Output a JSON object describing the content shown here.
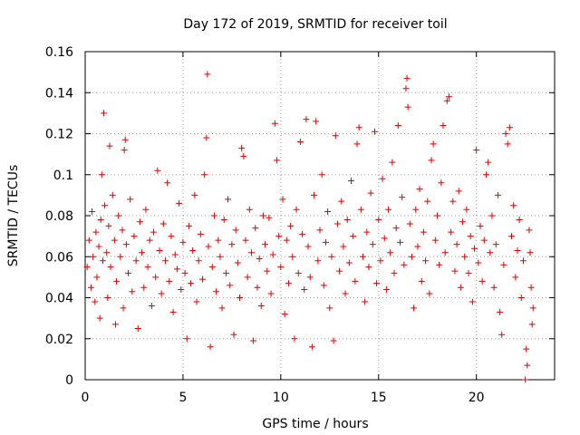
{
  "chart_data": {
    "type": "scatter",
    "title": "Day 172 of 2019, SRMTID for receiver toil",
    "xlabel": "GPS time / hours",
    "ylabel": "SRMTID / TECUs",
    "xlim": [
      0,
      24
    ],
    "ylim": [
      0,
      0.16
    ],
    "xticks": [
      0,
      5,
      10,
      15,
      20
    ],
    "xtick_labels": [
      "0",
      "5",
      "10",
      "15",
      "20"
    ],
    "yticks": [
      0,
      0.02,
      0.04,
      0.06,
      0.08,
      0.1,
      0.12,
      0.14,
      0.16
    ],
    "ytick_labels": [
      "0",
      "0.02",
      "0.04",
      "0.06",
      "0.08",
      "0.1",
      "0.12",
      "0.14",
      "0.16"
    ],
    "grid": true,
    "legend": "none",
    "marker": "plus",
    "color": "#e00000",
    "series": [
      {
        "points": [
          [
            0.1,
            0.055
          ],
          [
            0.2,
            0.068
          ],
          [
            0.3,
            0.045
          ],
          [
            0.35,
            0.082
          ],
          [
            0.4,
            0.06
          ],
          [
            0.5,
            0.038
          ],
          [
            0.55,
            0.072
          ],
          [
            0.6,
            0.05
          ],
          [
            0.7,
            0.065
          ],
          [
            0.75,
            0.03
          ],
          [
            0.8,
            0.078
          ],
          [
            0.85,
            0.1
          ],
          [
            0.9,
            0.058
          ],
          [
            0.95,
            0.13
          ],
          [
            1.0,
            0.085
          ],
          [
            1.1,
            0.062
          ],
          [
            1.15,
            0.04
          ],
          [
            1.2,
            0.075
          ],
          [
            1.25,
            0.114
          ],
          [
            1.3,
            0.055
          ],
          [
            1.4,
            0.09
          ],
          [
            1.5,
            0.068
          ],
          [
            1.55,
            0.027
          ],
          [
            1.6,
            0.048
          ],
          [
            1.7,
            0.08
          ],
          [
            1.8,
            0.06
          ],
          [
            1.9,
            0.073
          ],
          [
            1.95,
            0.035
          ],
          [
            2.0,
            0.112
          ],
          [
            2.05,
            0.117
          ],
          [
            2.1,
            0.066
          ],
          [
            2.2,
            0.052
          ],
          [
            2.3,
            0.088
          ],
          [
            2.4,
            0.043
          ],
          [
            2.5,
            0.07
          ],
          [
            2.6,
            0.058
          ],
          [
            2.7,
            0.025
          ],
          [
            2.8,
            0.077
          ],
          [
            2.9,
            0.062
          ],
          [
            3.0,
            0.045
          ],
          [
            3.1,
            0.083
          ],
          [
            3.2,
            0.055
          ],
          [
            3.3,
            0.068
          ],
          [
            3.4,
            0.036
          ],
          [
            3.5,
            0.072
          ],
          [
            3.6,
            0.05
          ],
          [
            3.7,
            0.102
          ],
          [
            3.8,
            0.063
          ],
          [
            3.9,
            0.042
          ],
          [
            4.0,
            0.076
          ],
          [
            4.1,
            0.058
          ],
          [
            4.2,
            0.096
          ],
          [
            4.3,
            0.048
          ],
          [
            4.4,
            0.07
          ],
          [
            4.5,
            0.033
          ],
          [
            4.6,
            0.061
          ],
          [
            4.7,
            0.054
          ],
          [
            4.8,
            0.086
          ],
          [
            4.9,
            0.044
          ],
          [
            5.0,
            0.067
          ],
          [
            5.1,
            0.052
          ],
          [
            5.2,
            0.02
          ],
          [
            5.3,
            0.075
          ],
          [
            5.4,
            0.047
          ],
          [
            5.5,
            0.063
          ],
          [
            5.6,
            0.09
          ],
          [
            5.7,
            0.038
          ],
          [
            5.8,
            0.058
          ],
          [
            5.9,
            0.071
          ],
          [
            6.0,
            0.049
          ],
          [
            6.1,
            0.1
          ],
          [
            6.2,
            0.118
          ],
          [
            6.25,
            0.149
          ],
          [
            6.3,
            0.065
          ],
          [
            6.4,
            0.016
          ],
          [
            6.5,
            0.055
          ],
          [
            6.6,
            0.08
          ],
          [
            6.7,
            0.043
          ],
          [
            6.8,
            0.068
          ],
          [
            6.9,
            0.06
          ],
          [
            7.0,
            0.035
          ],
          [
            7.1,
            0.078
          ],
          [
            7.2,
            0.052
          ],
          [
            7.3,
            0.088
          ],
          [
            7.4,
            0.046
          ],
          [
            7.5,
            0.066
          ],
          [
            7.6,
            0.022
          ],
          [
            7.7,
            0.073
          ],
          [
            7.8,
            0.057
          ],
          [
            7.9,
            0.04
          ],
          [
            8.0,
            0.113
          ],
          [
            8.1,
            0.109
          ],
          [
            8.2,
            0.068
          ],
          [
            8.3,
            0.05
          ],
          [
            8.4,
            0.083
          ],
          [
            8.5,
            0.062
          ],
          [
            8.6,
            0.019
          ],
          [
            8.7,
            0.074
          ],
          [
            8.8,
            0.045
          ],
          [
            8.9,
            0.059
          ],
          [
            9.0,
            0.036
          ],
          [
            9.1,
            0.08
          ],
          [
            9.2,
            0.066
          ],
          [
            9.3,
            0.053
          ],
          [
            9.4,
            0.079
          ],
          [
            9.5,
            0.042
          ],
          [
            9.6,
            0.061
          ],
          [
            9.7,
            0.125
          ],
          [
            9.8,
            0.107
          ],
          [
            9.9,
            0.07
          ],
          [
            10.0,
            0.055
          ],
          [
            10.1,
            0.088
          ],
          [
            10.2,
            0.032
          ],
          [
            10.3,
            0.068
          ],
          [
            10.4,
            0.047
          ],
          [
            10.5,
            0.075
          ],
          [
            10.6,
            0.06
          ],
          [
            10.7,
            0.02
          ],
          [
            10.8,
            0.083
          ],
          [
            10.9,
            0.052
          ],
          [
            11.0,
            0.116
          ],
          [
            11.1,
            0.071
          ],
          [
            11.2,
            0.044
          ],
          [
            11.3,
            0.127
          ],
          [
            11.4,
            0.065
          ],
          [
            11.5,
            0.05
          ],
          [
            11.6,
            0.016
          ],
          [
            11.7,
            0.09
          ],
          [
            11.8,
            0.126
          ],
          [
            11.9,
            0.058
          ],
          [
            12.0,
            0.073
          ],
          [
            12.1,
            0.1
          ],
          [
            12.2,
            0.046
          ],
          [
            12.3,
            0.067
          ],
          [
            12.4,
            0.082
          ],
          [
            12.5,
            0.035
          ],
          [
            12.6,
            0.06
          ],
          [
            12.7,
            0.019
          ],
          [
            12.8,
            0.119
          ],
          [
            12.9,
            0.076
          ],
          [
            13.0,
            0.053
          ],
          [
            13.1,
            0.087
          ],
          [
            13.2,
            0.065
          ],
          [
            13.3,
            0.042
          ],
          [
            13.4,
            0.078
          ],
          [
            13.5,
            0.057
          ],
          [
            13.6,
            0.097
          ],
          [
            13.7,
            0.07
          ],
          [
            13.8,
            0.048
          ],
          [
            13.9,
            0.115
          ],
          [
            14.0,
            0.123
          ],
          [
            14.1,
            0.083
          ],
          [
            14.2,
            0.06
          ],
          [
            14.3,
            0.038
          ],
          [
            14.4,
            0.072
          ],
          [
            14.5,
            0.055
          ],
          [
            14.6,
            0.091
          ],
          [
            14.7,
            0.066
          ],
          [
            14.8,
            0.121
          ],
          [
            14.9,
            0.047
          ],
          [
            15.0,
            0.078
          ],
          [
            15.1,
            0.058
          ],
          [
            15.2,
            0.098
          ],
          [
            15.3,
            0.069
          ],
          [
            15.4,
            0.044
          ],
          [
            15.5,
            0.083
          ],
          [
            15.6,
            0.062
          ],
          [
            15.7,
            0.106
          ],
          [
            15.8,
            0.052
          ],
          [
            15.9,
            0.074
          ],
          [
            16.0,
            0.124
          ],
          [
            16.1,
            0.067
          ],
          [
            16.2,
            0.089
          ],
          [
            16.3,
            0.056
          ],
          [
            16.4,
            0.142
          ],
          [
            16.45,
            0.147
          ],
          [
            16.5,
            0.133
          ],
          [
            16.6,
            0.076
          ],
          [
            16.7,
            0.06
          ],
          [
            16.8,
            0.035
          ],
          [
            16.9,
            0.083
          ],
          [
            17.0,
            0.065
          ],
          [
            17.1,
            0.093
          ],
          [
            17.2,
            0.048
          ],
          [
            17.3,
            0.072
          ],
          [
            17.4,
            0.058
          ],
          [
            17.5,
            0.087
          ],
          [
            17.6,
            0.042
          ],
          [
            17.7,
            0.107
          ],
          [
            17.8,
            0.115
          ],
          [
            17.9,
            0.068
          ],
          [
            18.0,
            0.08
          ],
          [
            18.1,
            0.056
          ],
          [
            18.2,
            0.096
          ],
          [
            18.3,
            0.124
          ],
          [
            18.4,
            0.062
          ],
          [
            18.5,
            0.136
          ],
          [
            18.6,
            0.138
          ],
          [
            18.7,
            0.072
          ],
          [
            18.8,
            0.087
          ],
          [
            18.9,
            0.053
          ],
          [
            19.0,
            0.066
          ],
          [
            19.1,
            0.092
          ],
          [
            19.2,
            0.045
          ],
          [
            19.3,
            0.077
          ],
          [
            19.4,
            0.06
          ],
          [
            19.5,
            0.083
          ],
          [
            19.6,
            0.052
          ],
          [
            19.7,
            0.07
          ],
          [
            19.8,
            0.038
          ],
          [
            19.9,
            0.064
          ],
          [
            20.0,
            0.112
          ],
          [
            20.1,
            0.057
          ],
          [
            20.2,
            0.075
          ],
          [
            20.3,
            0.048
          ],
          [
            20.4,
            0.068
          ],
          [
            20.5,
            0.1
          ],
          [
            20.6,
            0.106
          ],
          [
            20.7,
            0.062
          ],
          [
            20.8,
            0.08
          ],
          [
            20.9,
            0.045
          ],
          [
            21.0,
            0.066
          ],
          [
            21.1,
            0.09
          ],
          [
            21.2,
            0.033
          ],
          [
            21.3,
            0.022
          ],
          [
            21.4,
            0.056
          ],
          [
            21.5,
            0.12
          ],
          [
            21.6,
            0.115
          ],
          [
            21.7,
            0.123
          ],
          [
            21.8,
            0.07
          ],
          [
            21.9,
            0.085
          ],
          [
            22.0,
            0.05
          ],
          [
            22.1,
            0.063
          ],
          [
            22.2,
            0.078
          ],
          [
            22.3,
            0.04
          ],
          [
            22.4,
            0.058
          ],
          [
            22.5,
            0.0
          ],
          [
            22.55,
            0.015
          ],
          [
            22.6,
            0.007
          ],
          [
            22.7,
            0.073
          ],
          [
            22.75,
            0.062
          ],
          [
            22.8,
            0.045
          ],
          [
            22.85,
            0.027
          ],
          [
            22.9,
            0.035
          ]
        ]
      }
    ]
  }
}
